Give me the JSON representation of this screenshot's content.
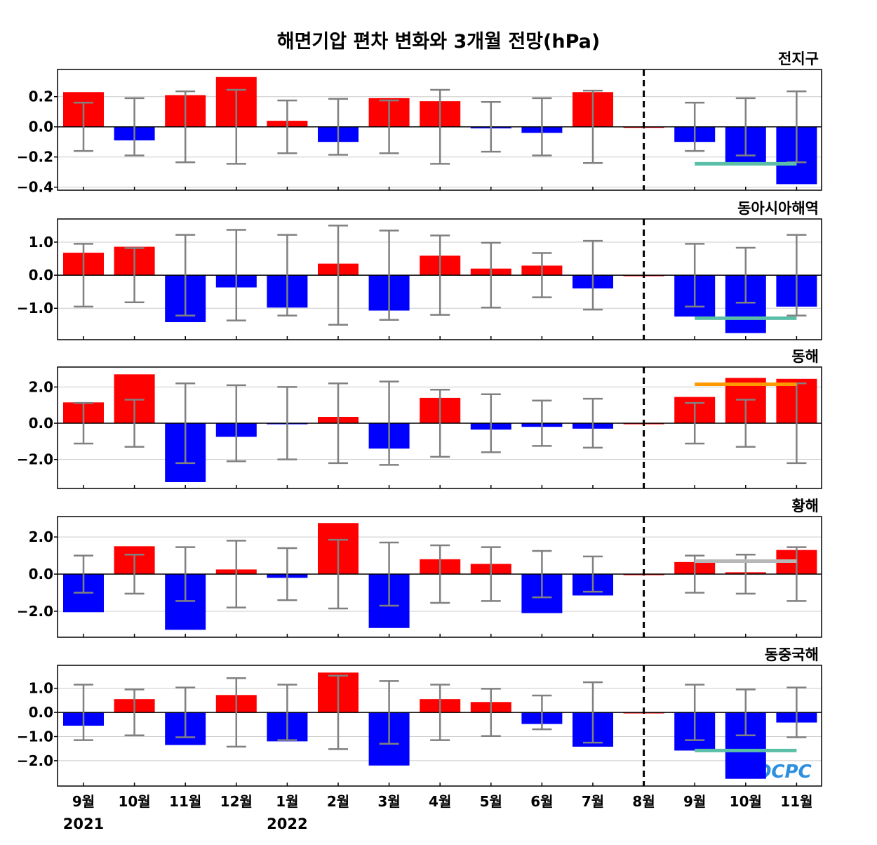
{
  "colors": {
    "positive": "#ff0000",
    "negative": "#0000ff",
    "error_bar": "#808080",
    "gridline": "#cccccc",
    "divider": "#000000",
    "logo": "#2d8fe0"
  },
  "logo_text": "OCPC",
  "chart_data": {
    "type": "bar",
    "title": "해면기압 편차 변화와 3개월 전망(hPa)",
    "categories": [
      "9월",
      "10월",
      "11월",
      "12월",
      "1월",
      "2월",
      "3월",
      "4월",
      "5월",
      "6월",
      "7월",
      "8월",
      "9월",
      "10월",
      "11월"
    ],
    "year_labels": [
      {
        "category_index": 0,
        "text": "2021"
      },
      {
        "category_index": 4,
        "text": "2022"
      }
    ],
    "divider_after_category": "8월",
    "grid": true,
    "panels": [
      {
        "name": "전지구",
        "ylim": [
          -0.42,
          0.38
        ],
        "yticks": [
          0.2,
          0.0,
          -0.2,
          -0.4
        ],
        "ytick_labels": [
          "0.2",
          "0.0",
          "−0.2",
          "−0.4"
        ],
        "values": [
          0.23,
          -0.09,
          0.21,
          0.33,
          0.04,
          -0.1,
          0.19,
          0.17,
          -0.01,
          -0.04,
          0.23,
          0.0,
          -0.1,
          -0.24,
          -0.38
        ],
        "error_bars": [
          0.16,
          0.19,
          0.235,
          0.245,
          0.175,
          0.185,
          0.175,
          0.245,
          0.165,
          0.19,
          0.24,
          null,
          0.16,
          0.19,
          0.235
        ],
        "forecast_line": {
          "value": -0.245,
          "from_category_index": 12,
          "to_category_index": 14,
          "color": "#5bbfa8"
        }
      },
      {
        "name": "동아시아해역",
        "ylim": [
          -1.95,
          1.7
        ],
        "yticks": [
          1.0,
          0.0,
          -1.0
        ],
        "ytick_labels": [
          "1.0",
          "0.0",
          "−1.0"
        ],
        "values": [
          0.68,
          0.86,
          -1.42,
          -0.37,
          -0.98,
          0.35,
          -1.07,
          0.59,
          0.2,
          0.29,
          -0.4,
          0.0,
          -1.25,
          -1.75,
          -0.95
        ],
        "error_bars": [
          0.95,
          0.82,
          1.22,
          1.37,
          1.22,
          1.5,
          1.35,
          1.2,
          0.98,
          0.67,
          1.04,
          null,
          0.95,
          0.83,
          1.22
        ],
        "forecast_line": {
          "value": -1.3,
          "from_category_index": 12,
          "to_category_index": 14,
          "color": "#5bbfa8"
        }
      },
      {
        "name": "동해",
        "ylim": [
          -3.6,
          3.1
        ],
        "yticks": [
          2.0,
          0.0,
          -2.0
        ],
        "ytick_labels": [
          "2.0",
          "0.0",
          "−2.0"
        ],
        "values": [
          1.15,
          2.7,
          -3.25,
          -0.75,
          -0.05,
          0.35,
          -1.4,
          1.4,
          -0.35,
          -0.2,
          -0.3,
          0.0,
          1.45,
          2.5,
          2.45
        ],
        "error_bars": [
          1.12,
          1.3,
          2.2,
          2.1,
          2.0,
          2.2,
          2.3,
          1.85,
          1.6,
          1.25,
          1.35,
          null,
          1.12,
          1.3,
          2.2
        ],
        "forecast_line": {
          "value": 2.15,
          "from_category_index": 12,
          "to_category_index": 14,
          "color": "#ff9900"
        }
      },
      {
        "name": "황해",
        "ylim": [
          -3.4,
          3.1
        ],
        "yticks": [
          2.0,
          0.0,
          -2.0
        ],
        "ytick_labels": [
          "2.0",
          "0.0",
          "−2.0"
        ],
        "values": [
          -2.05,
          1.5,
          -3.0,
          0.25,
          -0.2,
          2.75,
          -2.9,
          0.8,
          0.55,
          -2.1,
          -1.15,
          0.0,
          0.65,
          0.1,
          1.3
        ],
        "error_bars": [
          1.0,
          1.05,
          1.45,
          1.8,
          1.4,
          1.85,
          1.7,
          1.55,
          1.45,
          1.25,
          0.95,
          null,
          1.0,
          1.05,
          1.45
        ],
        "forecast_line": {
          "value": 0.7,
          "from_category_index": 12,
          "to_category_index": 14,
          "color": "#b7b7b7"
        }
      },
      {
        "name": "동중국해",
        "ylim": [
          -3.05,
          1.95
        ],
        "yticks": [
          1.0,
          0.0,
          -1.0,
          -2.0
        ],
        "ytick_labels": [
          "1.0",
          "0.0",
          "−1.0",
          "−2.0"
        ],
        "values": [
          -0.55,
          0.55,
          -1.35,
          0.72,
          -1.2,
          1.65,
          -2.2,
          0.55,
          0.43,
          -0.48,
          -1.42,
          0.0,
          -1.58,
          -2.75,
          -0.42
        ],
        "error_bars": [
          1.15,
          0.95,
          1.03,
          1.42,
          1.15,
          1.52,
          1.3,
          1.15,
          0.98,
          0.7,
          1.25,
          null,
          1.15,
          0.95,
          1.03
        ],
        "forecast_line": {
          "value": -1.58,
          "from_category_index": 12,
          "to_category_index": 14,
          "color": "#5bbfa8"
        }
      }
    ]
  }
}
